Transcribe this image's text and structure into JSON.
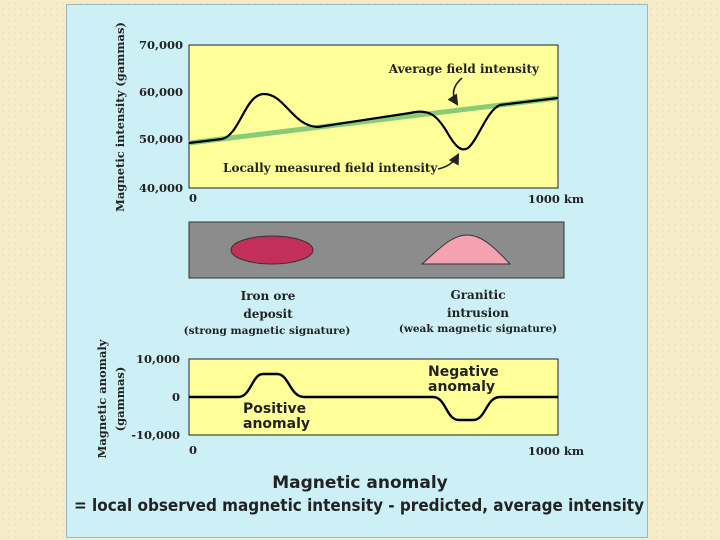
{
  "top_chart": {
    "ylabel": "Magnetic intensity (gammas)",
    "yticks": [
      "70,000",
      "60,000",
      "50,000",
      "40,000"
    ],
    "x_start": "0",
    "x_end": "1000 km",
    "average_label": "Average field intensity",
    "local_label": "Locally measured field intensity",
    "colors": {
      "background": "#ffff99",
      "average": "#88cc77",
      "local": "#000000"
    }
  },
  "cross_section": {
    "iron": {
      "title": "Iron ore",
      "title2": "deposit",
      "note": "(strong magnetic signature)",
      "color": "#c2305a"
    },
    "granite": {
      "title": "Granitic",
      "title2": "intrusion",
      "note": "(weak magnetic signature)",
      "color": "#f4a2b2"
    },
    "colors": {
      "ground": "#8c8c8c"
    }
  },
  "bottom_chart": {
    "ylabel_line1": "Magnetic anomaly",
    "ylabel_line2": "(gammas)",
    "yticks": [
      "10,000",
      "0",
      "-10,000"
    ],
    "x_start": "0",
    "x_end": "1000 km",
    "positive_line1": "Positive",
    "positive_line2": "anomaly",
    "negative_line1": "Negative",
    "negative_line2": "anomaly"
  },
  "caption": {
    "title": "Magnetic anomaly",
    "equation": "= local observed magnetic intensity - predicted, average intensity"
  }
}
